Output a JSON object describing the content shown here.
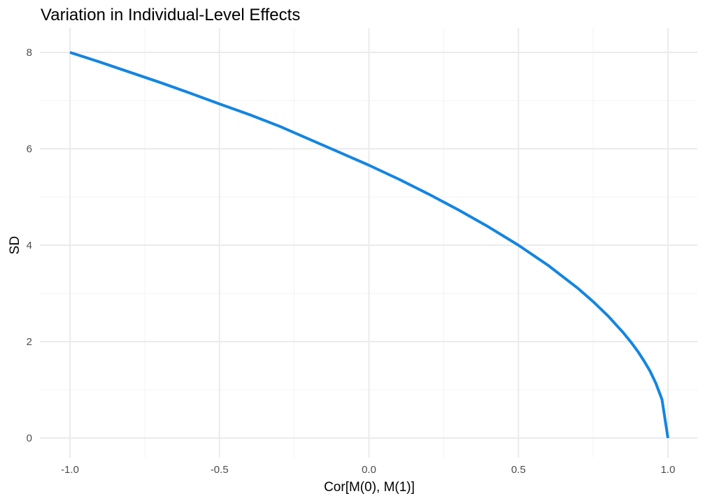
{
  "chart_data": {
    "type": "line",
    "title": "Variation in Individual-Level Effects",
    "xlabel": "Cor[M(0), M(1)]",
    "ylabel": "SD",
    "xlim": [
      -1.0,
      1.0
    ],
    "ylim": [
      0,
      8
    ],
    "xticks": [
      -1.0,
      -0.5,
      0.0,
      0.5,
      1.0
    ],
    "xtick_labels": [
      "-1.0",
      "-0.5",
      "0.0",
      "0.5",
      "1.0"
    ],
    "yticks": [
      0,
      2,
      4,
      6,
      8
    ],
    "ytick_labels": [
      "0",
      "2",
      "4",
      "6",
      "8"
    ],
    "grid": true,
    "legend": "none",
    "colors": {
      "line": "#1485e0"
    },
    "series": [
      {
        "x": [
          -1.0,
          -0.9,
          -0.8,
          -0.7,
          -0.6,
          -0.5,
          -0.4,
          -0.3,
          -0.2,
          -0.1,
          0.0,
          0.1,
          0.2,
          0.3,
          0.4,
          0.5,
          0.6,
          0.7,
          0.75,
          0.8,
          0.85,
          0.88,
          0.9,
          0.92,
          0.94,
          0.96,
          0.98,
          1.0
        ],
        "values": [
          8.0,
          7.8,
          7.59,
          7.38,
          7.16,
          6.93,
          6.71,
          6.47,
          6.2,
          5.93,
          5.66,
          5.37,
          5.06,
          4.73,
          4.38,
          4.0,
          3.58,
          3.1,
          2.83,
          2.53,
          2.19,
          1.96,
          1.79,
          1.6,
          1.39,
          1.13,
          0.8,
          0.0
        ]
      }
    ]
  }
}
